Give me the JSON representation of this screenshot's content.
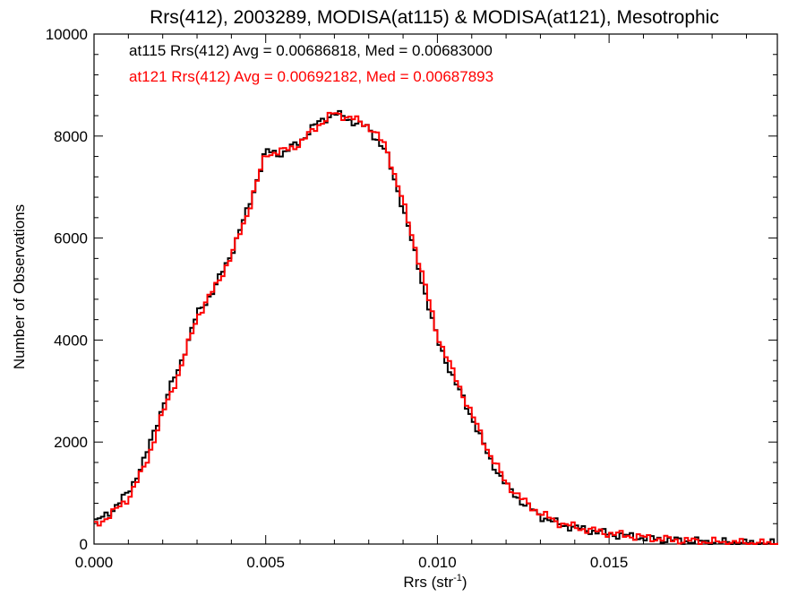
{
  "chart_data": {
    "type": "line",
    "title": "Rrs(412), 2003289, MODISA(at115) & MODISA(at121), Mesotrophic",
    "xlabel": "Rrs (str",
    "xlabel_sup": "-1",
    "xlabel_close": ")",
    "ylabel": "Number of Observations",
    "xlim": [
      0.0,
      0.0199
    ],
    "ylim": [
      0,
      10000
    ],
    "xticks": [
      0.0,
      0.005,
      0.01,
      0.015
    ],
    "xtick_labels": [
      "0.000",
      "0.005",
      "0.010",
      "0.015"
    ],
    "yticks": [
      0,
      2000,
      4000,
      6000,
      8000,
      10000
    ],
    "ytick_labels": [
      "0",
      "2000",
      "4000",
      "6000",
      "8000",
      "10000"
    ],
    "grid": false,
    "annotations": [
      {
        "text": "at115 Rrs(412) Avg = 0.00686818, Med = 0.00683000",
        "color": "#000000"
      },
      {
        "text": "at121 Rrs(412) Avg = 0.00692182, Med = 0.00687893",
        "color": "#ff0000"
      }
    ],
    "series": [
      {
        "color": "#000000",
        "x": [
          0.0,
          0.0005,
          0.001,
          0.0015,
          0.002,
          0.0025,
          0.003,
          0.0035,
          0.004,
          0.0045,
          0.005,
          0.0055,
          0.006,
          0.0065,
          0.007,
          0.0075,
          0.008,
          0.0085,
          0.009,
          0.0095,
          0.01,
          0.0105,
          0.011,
          0.0115,
          0.012,
          0.0125,
          0.013,
          0.0135,
          0.014,
          0.015,
          0.016,
          0.017,
          0.018,
          0.019,
          0.0199
        ],
        "y": [
          400,
          650,
          1000,
          1700,
          2700,
          3500,
          4500,
          5000,
          5700,
          6600,
          7700,
          7650,
          7900,
          8250,
          8450,
          8300,
          8150,
          7700,
          6600,
          5300,
          4000,
          3200,
          2500,
          1700,
          1150,
          800,
          550,
          400,
          320,
          200,
          120,
          70,
          40,
          20,
          5
        ]
      },
      {
        "color": "#ff0000",
        "x": [
          0.0,
          0.0005,
          0.001,
          0.0015,
          0.002,
          0.0025,
          0.003,
          0.0035,
          0.004,
          0.0045,
          0.005,
          0.0055,
          0.006,
          0.0065,
          0.007,
          0.0075,
          0.008,
          0.0085,
          0.009,
          0.0095,
          0.01,
          0.0105,
          0.011,
          0.0115,
          0.012,
          0.0125,
          0.013,
          0.0135,
          0.014,
          0.015,
          0.016,
          0.017,
          0.018,
          0.019,
          0.0199
        ],
        "y": [
          350,
          580,
          900,
          1550,
          2550,
          3400,
          4450,
          5000,
          5650,
          6550,
          7650,
          7700,
          7850,
          8200,
          8450,
          8350,
          8200,
          7800,
          6700,
          5450,
          4100,
          3300,
          2550,
          1800,
          1200,
          850,
          600,
          430,
          330,
          210,
          130,
          75,
          42,
          22,
          6
        ]
      }
    ]
  }
}
